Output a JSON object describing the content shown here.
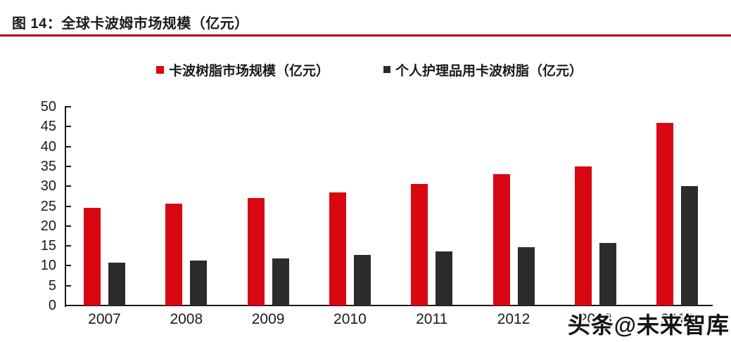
{
  "figure": {
    "title": "图 14：全球卡波姆市场规模（亿元）",
    "watermark": "头条@未来智库"
  },
  "colors": {
    "series1": "#d90712",
    "series2": "#2b2b2b",
    "title_rule": "#a50f1e",
    "axis": "#1a1a1a"
  },
  "chart_data": {
    "type": "bar",
    "title": "全球卡波姆市场规模（亿元）",
    "categories": [
      "2007",
      "2008",
      "2009",
      "2010",
      "2011",
      "2012",
      "2013",
      "2014"
    ],
    "series": [
      {
        "name": "卡波树脂市场规模（亿元）",
        "color": "#d90712",
        "values": [
          24.5,
          25.7,
          27,
          28.5,
          30.5,
          33,
          35,
          46
        ]
      },
      {
        "name": "个人护理品用卡波树脂（亿元）",
        "color": "#2b2b2b",
        "values": [
          10.7,
          11.3,
          11.9,
          12.7,
          13.6,
          14.7,
          15.7,
          30
        ]
      }
    ],
    "xlabel": "",
    "ylabel": "",
    "ylim": [
      0,
      50
    ],
    "ytick_step": 5,
    "grid": false,
    "legend_position": "top"
  }
}
